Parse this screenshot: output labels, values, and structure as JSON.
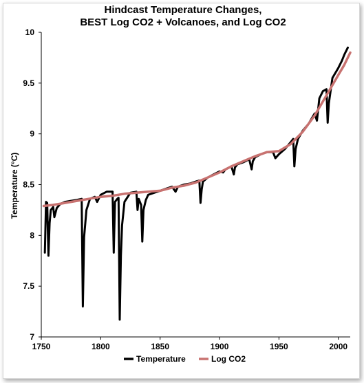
{
  "chart_data": {
    "type": "line",
    "title_lines": [
      "Hindcast Temperature Changes,",
      "BEST Log CO2 + Volcanoes, and Log CO2"
    ],
    "xlabel": "",
    "ylabel": "Temperature (°C)",
    "xlim": [
      1750,
      2010
    ],
    "ylim": [
      7,
      10
    ],
    "x_ticks": [
      "1750",
      "1800",
      "1850",
      "1900",
      "1950",
      "2000"
    ],
    "y_ticks": [
      "7",
      "7.5",
      "8",
      "8.5",
      "9",
      "9.5",
      "10"
    ],
    "grid": false,
    "legend_position": "bottom",
    "series": [
      {
        "name": "Temperature",
        "color": "#000000",
        "points": [
          [
            1753,
            7.83
          ],
          [
            1754,
            8.33
          ],
          [
            1755,
            8.32
          ],
          [
            1756,
            7.8
          ],
          [
            1757,
            8.12
          ],
          [
            1758,
            8.25
          ],
          [
            1760,
            8.28
          ],
          [
            1761,
            8.18
          ],
          [
            1763,
            8.27
          ],
          [
            1766,
            8.31
          ],
          [
            1770,
            8.33
          ],
          [
            1775,
            8.34
          ],
          [
            1780,
            8.35
          ],
          [
            1784,
            8.36
          ],
          [
            1785,
            7.3
          ],
          [
            1786,
            7.98
          ],
          [
            1788,
            8.25
          ],
          [
            1791,
            8.36
          ],
          [
            1795,
            8.38
          ],
          [
            1797,
            8.33
          ],
          [
            1800,
            8.4
          ],
          [
            1805,
            8.43
          ],
          [
            1810,
            8.43
          ],
          [
            1811,
            7.83
          ],
          [
            1812,
            8.33
          ],
          [
            1814,
            8.36
          ],
          [
            1815,
            8.37
          ],
          [
            1816,
            7.17
          ],
          [
            1817,
            7.8
          ],
          [
            1818,
            8.1
          ],
          [
            1820,
            8.33
          ],
          [
            1825,
            8.42
          ],
          [
            1830,
            8.43
          ],
          [
            1831,
            8.25
          ],
          [
            1832,
            8.36
          ],
          [
            1834,
            8.3
          ],
          [
            1835,
            7.94
          ],
          [
            1836,
            8.25
          ],
          [
            1838,
            8.35
          ],
          [
            1840,
            8.4
          ],
          [
            1845,
            8.42
          ],
          [
            1850,
            8.44
          ],
          [
            1855,
            8.46
          ],
          [
            1860,
            8.48
          ],
          [
            1863,
            8.43
          ],
          [
            1865,
            8.48
          ],
          [
            1870,
            8.5
          ],
          [
            1875,
            8.51
          ],
          [
            1880,
            8.53
          ],
          [
            1883,
            8.54
          ],
          [
            1884,
            8.32
          ],
          [
            1885,
            8.45
          ],
          [
            1886,
            8.53
          ],
          [
            1890,
            8.57
          ],
          [
            1895,
            8.6
          ],
          [
            1900,
            8.63
          ],
          [
            1903,
            8.62
          ],
          [
            1905,
            8.65
          ],
          [
            1910,
            8.68
          ],
          [
            1912,
            8.6
          ],
          [
            1913,
            8.67
          ],
          [
            1915,
            8.7
          ],
          [
            1920,
            8.72
          ],
          [
            1925,
            8.75
          ],
          [
            1927,
            8.65
          ],
          [
            1928,
            8.73
          ],
          [
            1930,
            8.77
          ],
          [
            1935,
            8.8
          ],
          [
            1940,
            8.82
          ],
          [
            1945,
            8.82
          ],
          [
            1947,
            8.76
          ],
          [
            1950,
            8.8
          ],
          [
            1955,
            8.85
          ],
          [
            1960,
            8.92
          ],
          [
            1962,
            8.95
          ],
          [
            1963,
            8.68
          ],
          [
            1964,
            8.85
          ],
          [
            1966,
            8.95
          ],
          [
            1970,
            9.03
          ],
          [
            1975,
            9.1
          ],
          [
            1980,
            9.2
          ],
          [
            1982,
            9.13
          ],
          [
            1984,
            9.35
          ],
          [
            1987,
            9.42
          ],
          [
            1990,
            9.44
          ],
          [
            1991,
            9.11
          ],
          [
            1992,
            9.3
          ],
          [
            1995,
            9.55
          ],
          [
            2000,
            9.65
          ],
          [
            2003,
            9.72
          ],
          [
            2005,
            9.78
          ],
          [
            2008,
            9.85
          ]
        ]
      },
      {
        "name": "Log CO2",
        "color": "#c87270",
        "points": [
          [
            1752,
            8.29
          ],
          [
            1760,
            8.3
          ],
          [
            1770,
            8.32
          ],
          [
            1780,
            8.34
          ],
          [
            1790,
            8.36
          ],
          [
            1800,
            8.38
          ],
          [
            1810,
            8.39
          ],
          [
            1820,
            8.41
          ],
          [
            1830,
            8.42
          ],
          [
            1840,
            8.43
          ],
          [
            1850,
            8.44
          ],
          [
            1860,
            8.47
          ],
          [
            1870,
            8.49
          ],
          [
            1880,
            8.52
          ],
          [
            1890,
            8.57
          ],
          [
            1900,
            8.62
          ],
          [
            1910,
            8.68
          ],
          [
            1920,
            8.73
          ],
          [
            1930,
            8.78
          ],
          [
            1940,
            8.82
          ],
          [
            1950,
            8.83
          ],
          [
            1960,
            8.9
          ],
          [
            1970,
            9.02
          ],
          [
            1980,
            9.18
          ],
          [
            1990,
            9.38
          ],
          [
            2000,
            9.58
          ],
          [
            2005,
            9.68
          ],
          [
            2010,
            9.8
          ]
        ]
      }
    ]
  }
}
